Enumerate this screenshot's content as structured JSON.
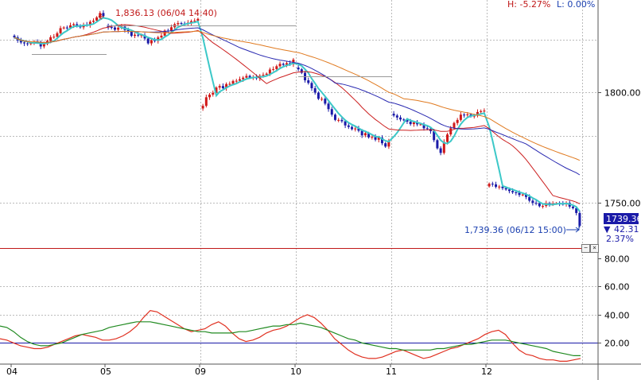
{
  "header": {
    "high_label": "H: -5.27%",
    "low_label": "L: 0.00%"
  },
  "annotations": {
    "high_marker": "1,836.13 (06/04 14:40)",
    "last_marker": "1,739.36 (06/12 15:00)",
    "last_value": "1739.36",
    "change": "42.31",
    "change_pct": "2.37%"
  },
  "colors": {
    "up_candle": "#d01818",
    "down_candle": "#1a1aa8",
    "ma_fast": "#3cc8c8",
    "ma_red": "#cc2020",
    "ma_blue": "#2828b0",
    "ma_orange": "#e07a20",
    "osc_red": "#e03020",
    "osc_green": "#208a20",
    "ref_line_red": "#c01818",
    "ref_line_blue": "#1a1aa8",
    "grid": "#bbbbbb"
  },
  "controls": {
    "minimize": "−",
    "close": "×"
  },
  "chart_data": [
    {
      "type": "candlestick",
      "title": "",
      "x_ticks": [
        "04",
        "05",
        "09",
        "10",
        "11",
        "12"
      ],
      "y_ticks": [
        "1800.00",
        "1750.00"
      ],
      "ylim": [
        1730,
        1842
      ],
      "grid": true,
      "session_closes": [
        {
          "session": "04",
          "values": [
            1825.0,
            1823.6,
            1822.7,
            1822.3,
            1822.0,
            1822.6,
            1822.9,
            1822.8,
            1820.9,
            1822.0,
            1823.4,
            1825.1,
            1825.3,
            1826.9,
            1829.2,
            1829.5,
            1829.4,
            1830.5,
            1831.0,
            1830.4,
            1829.6,
            1830.8,
            1830.6,
            1832.1,
            1832.6,
            1834.1,
            1836.1,
            1834.7
          ]
        },
        {
          "session": "05",
          "values": [
            1829.7,
            1829.5,
            1828.5,
            1829.4,
            1829.9,
            1828.4,
            1827.6,
            1825.7,
            1826.2,
            1825.9,
            1826.0,
            1824.5,
            1822.3,
            1823.7,
            1823.4,
            1825.0,
            1825.8,
            1828.1,
            1828.0,
            1829.6,
            1831.0,
            1831.5,
            1831.3,
            1831.1,
            1831.7,
            1832.4,
            1832.6,
            1833.4
          ]
        },
        {
          "session": "09",
          "values": [
            1793.9,
            1797.8,
            1799.0,
            1799.8,
            1802.2,
            1802.9,
            1801.9,
            1803.8,
            1803.9,
            1805.2,
            1805.3,
            1806.0,
            1806.7,
            1807.5,
            1806.7,
            1807.0,
            1806.4,
            1807.6,
            1808.0,
            1808.5,
            1810.4,
            1810.6,
            1811.9,
            1813.0,
            1812.5,
            1813.3,
            1812.8,
            1814.9
          ]
        },
        {
          "session": "10",
          "values": [
            1810.5,
            1808.9,
            1805.5,
            1804.3,
            1801.9,
            1799.9,
            1797.1,
            1797.1,
            1794.9,
            1792.4,
            1789.9,
            1787.5,
            1787.5,
            1786.9,
            1785.0,
            1784.3,
            1783.3,
            1783.6,
            1782.6,
            1780.5,
            1781.5,
            1779.6,
            1779.8,
            1778.5,
            1779.5,
            1776.9,
            1775.4,
            1778.0
          ]
        },
        {
          "session": "11",
          "values": [
            1789.5,
            1788.6,
            1787.7,
            1787.5,
            1786.7,
            1785.6,
            1786.4,
            1785.5,
            1785.5,
            1783.7,
            1783.5,
            1782.4,
            1778.3,
            1774.6,
            1772.5,
            1777.5,
            1780.9,
            1783.7,
            1786.1,
            1787.5,
            1789.9,
            1789.7,
            1790.0,
            1789.2,
            1789.4,
            1791.1,
            1791.5,
            1791.7
          ]
        },
        {
          "session": "12",
          "values": [
            1758.5,
            1758.2,
            1757.1,
            1757.2,
            1756.5,
            1755.9,
            1755.2,
            1754.6,
            1754.4,
            1753.4,
            1753.6,
            1752.5,
            1750.8,
            1749.8,
            1749.6,
            1748.3,
            1748.4,
            1749.6,
            1749.3,
            1749.5,
            1749.6,
            1749.4,
            1749.3,
            1749.8,
            1748.1,
            1747.4,
            1745.2,
            1739.4
          ]
        }
      ],
      "high": {
        "value": 1836.13,
        "time": "06/04 14:40"
      },
      "last": {
        "value": 1739.36,
        "time": "06/12 15:00"
      }
    },
    {
      "type": "line",
      "title": "",
      "y_ticks": [
        "80.00",
        "60.00",
        "40.00",
        "20.00"
      ],
      "ylim": [
        5,
        85
      ],
      "grid": true,
      "reference_levels": [
        80,
        20
      ],
      "series": [
        {
          "values": [
            23,
            22,
            20,
            18,
            17,
            16,
            16,
            17,
            19,
            21,
            23,
            25,
            26,
            25,
            24,
            22,
            22,
            23,
            25,
            28,
            32,
            38,
            43,
            42,
            39,
            36,
            33,
            30,
            28,
            29,
            30,
            33,
            35,
            32,
            27,
            23,
            21,
            22,
            24,
            27,
            29,
            30,
            32,
            35,
            38,
            40,
            38,
            34,
            29,
            23,
            19,
            15,
            12,
            10,
            9,
            9,
            10,
            12,
            14,
            15,
            13,
            11,
            9,
            10,
            12,
            14,
            16,
            17,
            19,
            21,
            23,
            26,
            28,
            29,
            26,
            20,
            15,
            12,
            11,
            9,
            8,
            8,
            7,
            7,
            8,
            9
          ]
        },
        {
          "values": [
            32,
            31,
            28,
            24,
            21,
            19,
            18,
            18,
            19,
            20,
            22,
            24,
            26,
            27,
            28,
            29,
            31,
            32,
            33,
            34,
            35,
            35,
            35,
            34,
            33,
            32,
            31,
            30,
            29,
            28,
            28,
            27,
            27,
            27,
            27,
            28,
            28,
            29,
            30,
            31,
            32,
            32,
            33,
            33,
            34,
            33,
            32,
            31,
            29,
            27,
            25,
            23,
            22,
            20,
            19,
            18,
            17,
            16,
            16,
            15,
            15,
            15,
            15,
            15,
            16,
            16,
            17,
            18,
            19,
            19,
            20,
            21,
            22,
            22,
            22,
            21,
            20,
            19,
            18,
            17,
            16,
            14,
            13,
            12,
            11,
            11
          ]
        }
      ]
    }
  ]
}
